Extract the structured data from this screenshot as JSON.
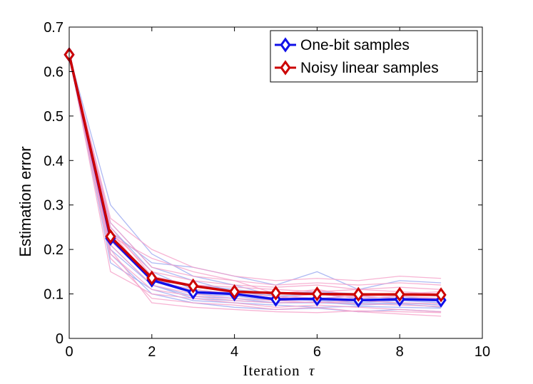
{
  "chart_data": {
    "type": "line",
    "title": "",
    "xlabel": "Iteration",
    "xlabel_symbol": "τ",
    "ylabel": "Estimation error",
    "xlim": [
      0,
      10
    ],
    "ylim": [
      0,
      0.7
    ],
    "xticks": [
      0,
      2,
      4,
      6,
      8,
      10
    ],
    "yticks": [
      0,
      0.1,
      0.2,
      0.3,
      0.4,
      0.5,
      0.6,
      0.7
    ],
    "xtick_labels": [
      "0",
      "2",
      "4",
      "6",
      "8",
      "10"
    ],
    "ytick_labels": [
      "0",
      "0.1",
      "0.2",
      "0.3",
      "0.4",
      "0.5",
      "0.6",
      "0.7"
    ],
    "grid": false,
    "legend_position": "top-right",
    "x": [
      0,
      1,
      2,
      3,
      4,
      5,
      6,
      7,
      8,
      9
    ],
    "series": [
      {
        "name": "One-bit samples",
        "color": "#1010e8",
        "marker": "diamond",
        "values": [
          0.638,
          0.225,
          0.131,
          0.104,
          0.1,
          0.088,
          0.089,
          0.086,
          0.088,
          0.086
        ]
      },
      {
        "name": "Noisy linear samples",
        "color": "#cc0000",
        "marker": "diamond",
        "values": [
          0.638,
          0.229,
          0.136,
          0.118,
          0.105,
          0.102,
          0.1,
          0.099,
          0.099,
          0.098
        ]
      }
    ],
    "trial_series": {
      "one_bit_color": "#9aa8f0",
      "noisy_color": "#f5a0c8",
      "one_bit": [
        [
          0.638,
          0.3,
          0.19,
          0.14,
          0.12,
          0.095,
          0.1,
          0.09,
          0.095,
          0.085
        ],
        [
          0.638,
          0.25,
          0.15,
          0.11,
          0.1,
          0.09,
          0.085,
          0.08,
          0.085,
          0.08
        ],
        [
          0.638,
          0.23,
          0.14,
          0.1,
          0.095,
          0.085,
          0.09,
          0.085,
          0.09,
          0.09
        ],
        [
          0.638,
          0.2,
          0.12,
          0.095,
          0.09,
          0.08,
          0.08,
          0.078,
          0.08,
          0.075
        ],
        [
          0.638,
          0.17,
          0.11,
          0.085,
          0.08,
          0.075,
          0.07,
          0.072,
          0.07,
          0.068
        ],
        [
          0.638,
          0.22,
          0.13,
          0.12,
          0.11,
          0.1,
          0.105,
          0.1,
          0.1,
          0.095
        ],
        [
          0.638,
          0.26,
          0.16,
          0.13,
          0.105,
          0.095,
          0.09,
          0.095,
          0.09,
          0.085
        ],
        [
          0.638,
          0.21,
          0.12,
          0.09,
          0.085,
          0.08,
          0.082,
          0.075,
          0.078,
          0.07
        ],
        [
          0.638,
          0.24,
          0.17,
          0.16,
          0.14,
          0.12,
          0.15,
          0.11,
          0.13,
          0.125
        ],
        [
          0.638,
          0.19,
          0.1,
          0.08,
          0.07,
          0.065,
          0.068,
          0.06,
          0.065,
          0.06
        ]
      ],
      "noisy": [
        [
          0.638,
          0.27,
          0.2,
          0.16,
          0.14,
          0.13,
          0.135,
          0.13,
          0.14,
          0.135
        ],
        [
          0.638,
          0.15,
          0.1,
          0.09,
          0.08,
          0.07,
          0.075,
          0.07,
          0.065,
          0.06
        ],
        [
          0.638,
          0.24,
          0.15,
          0.13,
          0.12,
          0.115,
          0.12,
          0.11,
          0.115,
          0.11
        ],
        [
          0.638,
          0.22,
          0.13,
          0.11,
          0.1,
          0.095,
          0.09,
          0.095,
          0.09,
          0.09
        ],
        [
          0.638,
          0.18,
          0.09,
          0.08,
          0.075,
          0.065,
          0.07,
          0.06,
          0.055,
          0.05
        ],
        [
          0.638,
          0.26,
          0.16,
          0.14,
          0.13,
          0.12,
          0.125,
          0.12,
          0.125,
          0.12
        ],
        [
          0.638,
          0.21,
          0.12,
          0.1,
          0.09,
          0.085,
          0.08,
          0.085,
          0.08,
          0.078
        ],
        [
          0.638,
          0.25,
          0.14,
          0.12,
          0.115,
          0.11,
          0.105,
          0.11,
          0.105,
          0.1
        ],
        [
          0.638,
          0.19,
          0.11,
          0.095,
          0.085,
          0.08,
          0.082,
          0.078,
          0.075,
          0.072
        ],
        [
          0.638,
          0.23,
          0.18,
          0.15,
          0.13,
          0.1,
          0.11,
          0.095,
          0.1,
          0.105
        ],
        [
          0.638,
          0.24,
          0.13,
          0.12,
          0.1,
          0.09,
          0.1,
          0.09,
          0.095,
          0.09
        ],
        [
          0.638,
          0.2,
          0.08,
          0.07,
          0.065,
          0.06,
          0.058,
          0.062,
          0.06,
          0.058
        ]
      ]
    }
  }
}
